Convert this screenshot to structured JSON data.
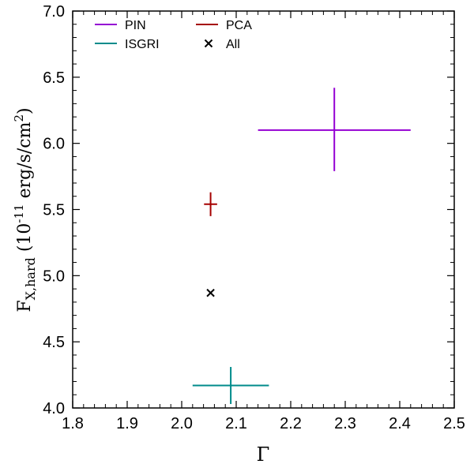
{
  "chart_data": {
    "type": "scatter",
    "xlabel": "Γ",
    "ylabel": {
      "base": "F",
      "sub": "X,hard",
      "pre": " (10",
      "exp": "-11",
      "unit": " erg/s/cm",
      "unit_exp": "2",
      "post": ")"
    },
    "xlim": [
      1.8,
      2.5
    ],
    "ylim": [
      4.0,
      7.0
    ],
    "xticks": [
      1.8,
      1.9,
      2.0,
      2.1,
      2.2,
      2.3,
      2.4,
      2.5
    ],
    "xtick_labels": [
      "1.8",
      "1.9",
      "2.0",
      "2.1",
      "2.2",
      "2.3",
      "2.4",
      "2.5"
    ],
    "yticks": [
      4.0,
      4.5,
      5.0,
      5.5,
      6.0,
      6.5,
      7.0
    ],
    "ytick_labels": [
      "4.0",
      "4.5",
      "5.0",
      "5.5",
      "6.0",
      "6.5",
      "7.0"
    ],
    "grid": false,
    "legend_position": "top-left",
    "series": [
      {
        "name": "PIN",
        "color": "#9400d3",
        "marker": "errorbar",
        "points": [
          {
            "x": 2.28,
            "y": 6.1,
            "xerr": [
              0.14,
              0.14
            ],
            "yerr": [
              0.31,
              0.32
            ]
          }
        ]
      },
      {
        "name": "PCA",
        "color": "#a50000",
        "marker": "errorbar",
        "points": [
          {
            "x": 2.053,
            "y": 5.54,
            "xerr": [
              0.012,
              0.012
            ],
            "yerr": [
              0.09,
              0.09
            ]
          }
        ]
      },
      {
        "name": "ISGRI",
        "color": "#008b8b",
        "marker": "errorbar",
        "points": [
          {
            "x": 2.09,
            "y": 4.17,
            "xerr": [
              0.07,
              0.07
            ],
            "yerr": [
              0.14,
              0.14
            ]
          }
        ]
      },
      {
        "name": "All",
        "color": "#000000",
        "marker": "x",
        "points": [
          {
            "x": 2.053,
            "y": 4.87
          }
        ]
      }
    ]
  }
}
